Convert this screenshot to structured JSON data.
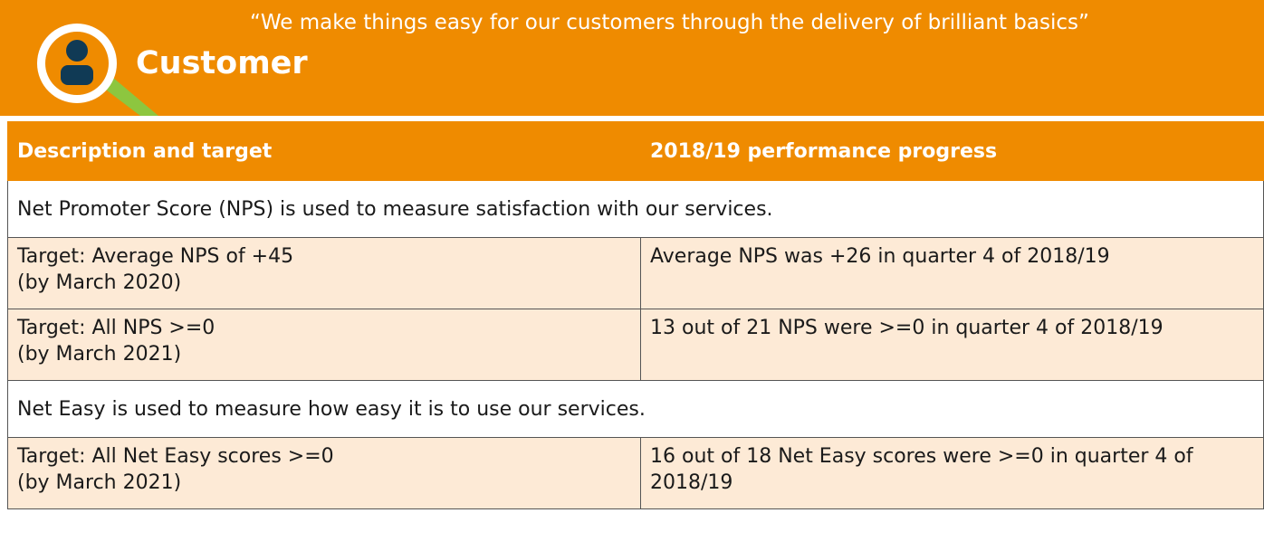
{
  "header": {
    "title": "Customer",
    "quote": "“We make things easy for our customers through the delivery of brilliant basics”"
  },
  "table": {
    "columns": [
      "Description and target",
      "2018/19 performance progress"
    ],
    "sections": [
      {
        "heading": "Net Promoter Score (NPS) is used to measure satisfaction with our services.",
        "rows": [
          {
            "target": [
              "Target: Average NPS of +45",
              "(by March 2020)"
            ],
            "progress": "Average NPS was +26 in quarter 4 of 2018/19"
          },
          {
            "target": [
              "Target: All NPS >=0",
              "(by March 2021)"
            ],
            "progress": "13 out of 21 NPS were >=0 in quarter 4 of 2018/19"
          }
        ]
      },
      {
        "heading": "Net Easy is used to measure how easy it is to use our services.",
        "rows": [
          {
            "target": [
              "Target: All Net Easy scores >=0",
              "(by March 2021)"
            ],
            "progress": "16 out of 18 Net Easy scores were >=0 in quarter 4 of 2018/19"
          }
        ]
      }
    ]
  }
}
